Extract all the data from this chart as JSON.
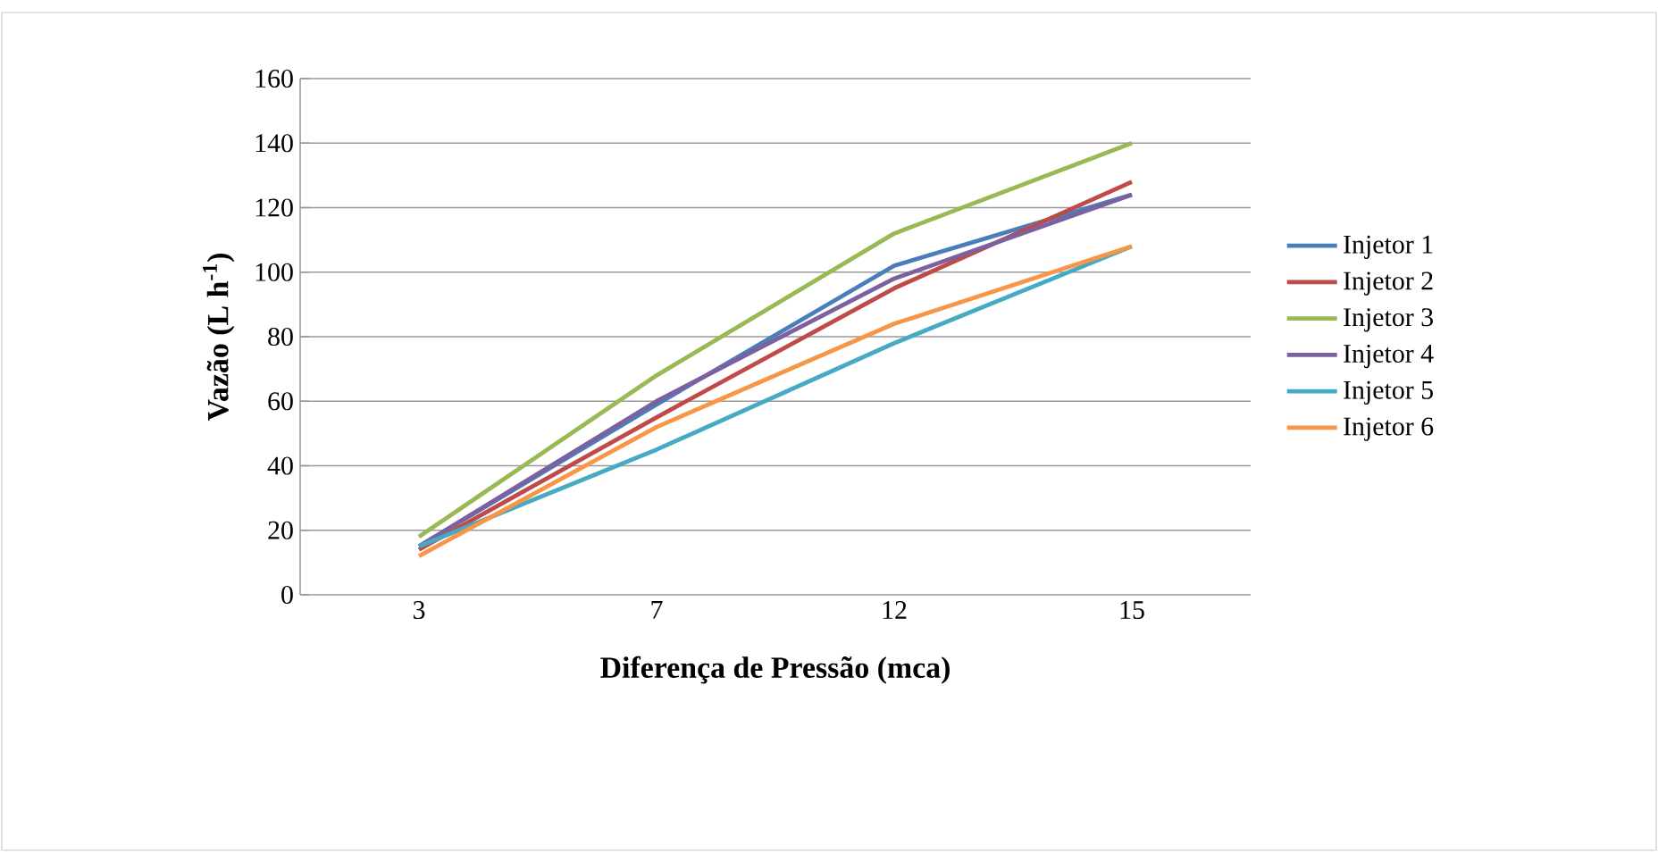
{
  "chart_data": {
    "type": "line",
    "xlabel": "Diferença de Pressão (mca)",
    "ylabel": "Vazão (L h$^{-1}$)",
    "categories": [
      "3",
      "7",
      "12",
      "15"
    ],
    "series": [
      {
        "name": "Injetor 1",
        "color": "#4a7ebb",
        "values": [
          15,
          59,
          102,
          124
        ]
      },
      {
        "name": "Injetor 2",
        "color": "#be4b48",
        "values": [
          14,
          55,
          95,
          128
        ]
      },
      {
        "name": "Injetor 3",
        "color": "#98b954",
        "values": [
          18,
          68,
          112,
          140
        ]
      },
      {
        "name": "Injetor 4",
        "color": "#7d60a0",
        "values": [
          15,
          60,
          98,
          124
        ]
      },
      {
        "name": "Injetor 5",
        "color": "#46aac5",
        "values": [
          15,
          45,
          78,
          108
        ]
      },
      {
        "name": "Injetor 6",
        "color": "#f79646",
        "values": [
          12,
          52,
          84,
          108
        ]
      }
    ],
    "ylim": [
      0,
      160
    ],
    "yticks": [
      0,
      20,
      40,
      60,
      80,
      100,
      120,
      140,
      160
    ],
    "grid": "y",
    "legend": "right",
    "marker": "none",
    "line_style": "solid"
  }
}
